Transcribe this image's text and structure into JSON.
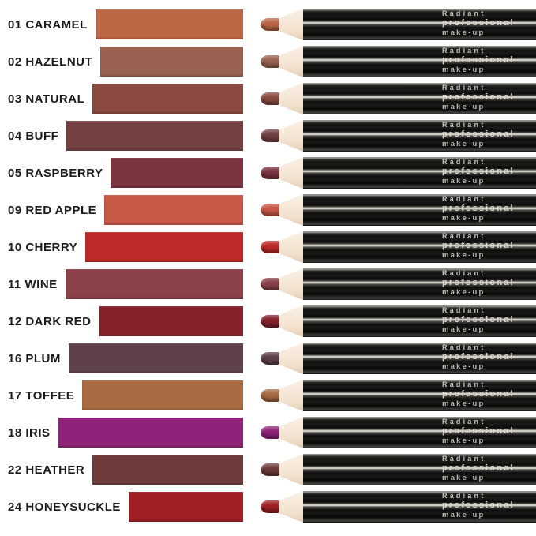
{
  "brand": {
    "line1": "Radiant",
    "line2": "professional",
    "line3": "make-up"
  },
  "wood_color": "#F5E7D7",
  "body_color": "#111110",
  "shades": [
    {
      "label": "01 CARAMEL",
      "color": "#BC6746"
    },
    {
      "label": "02 HAZELNUT",
      "color": "#9A6351"
    },
    {
      "label": "03 NATURAL",
      "color": "#8A4A42"
    },
    {
      "label": "04 BUFF",
      "color": "#744041"
    },
    {
      "label": "05 RASPBERRY",
      "color": "#7D3441"
    },
    {
      "label": "09 RED APPLE",
      "color": "#C85848"
    },
    {
      "label": "10 CHERRY",
      "color": "#BE2A28"
    },
    {
      "label": "11 WINE",
      "color": "#8A414A"
    },
    {
      "label": "12 DARK RED",
      "color": "#84222C"
    },
    {
      "label": "16 PLUM",
      "color": "#5E414B"
    },
    {
      "label": "17 TOFFEE",
      "color": "#A96B44"
    },
    {
      "label": "18 IRIS",
      "color": "#8E2479"
    },
    {
      "label": "22 HEATHER",
      "color": "#6E3C3C"
    },
    {
      "label": "24 HONEYSUCKLE",
      "color": "#A02025"
    }
  ]
}
